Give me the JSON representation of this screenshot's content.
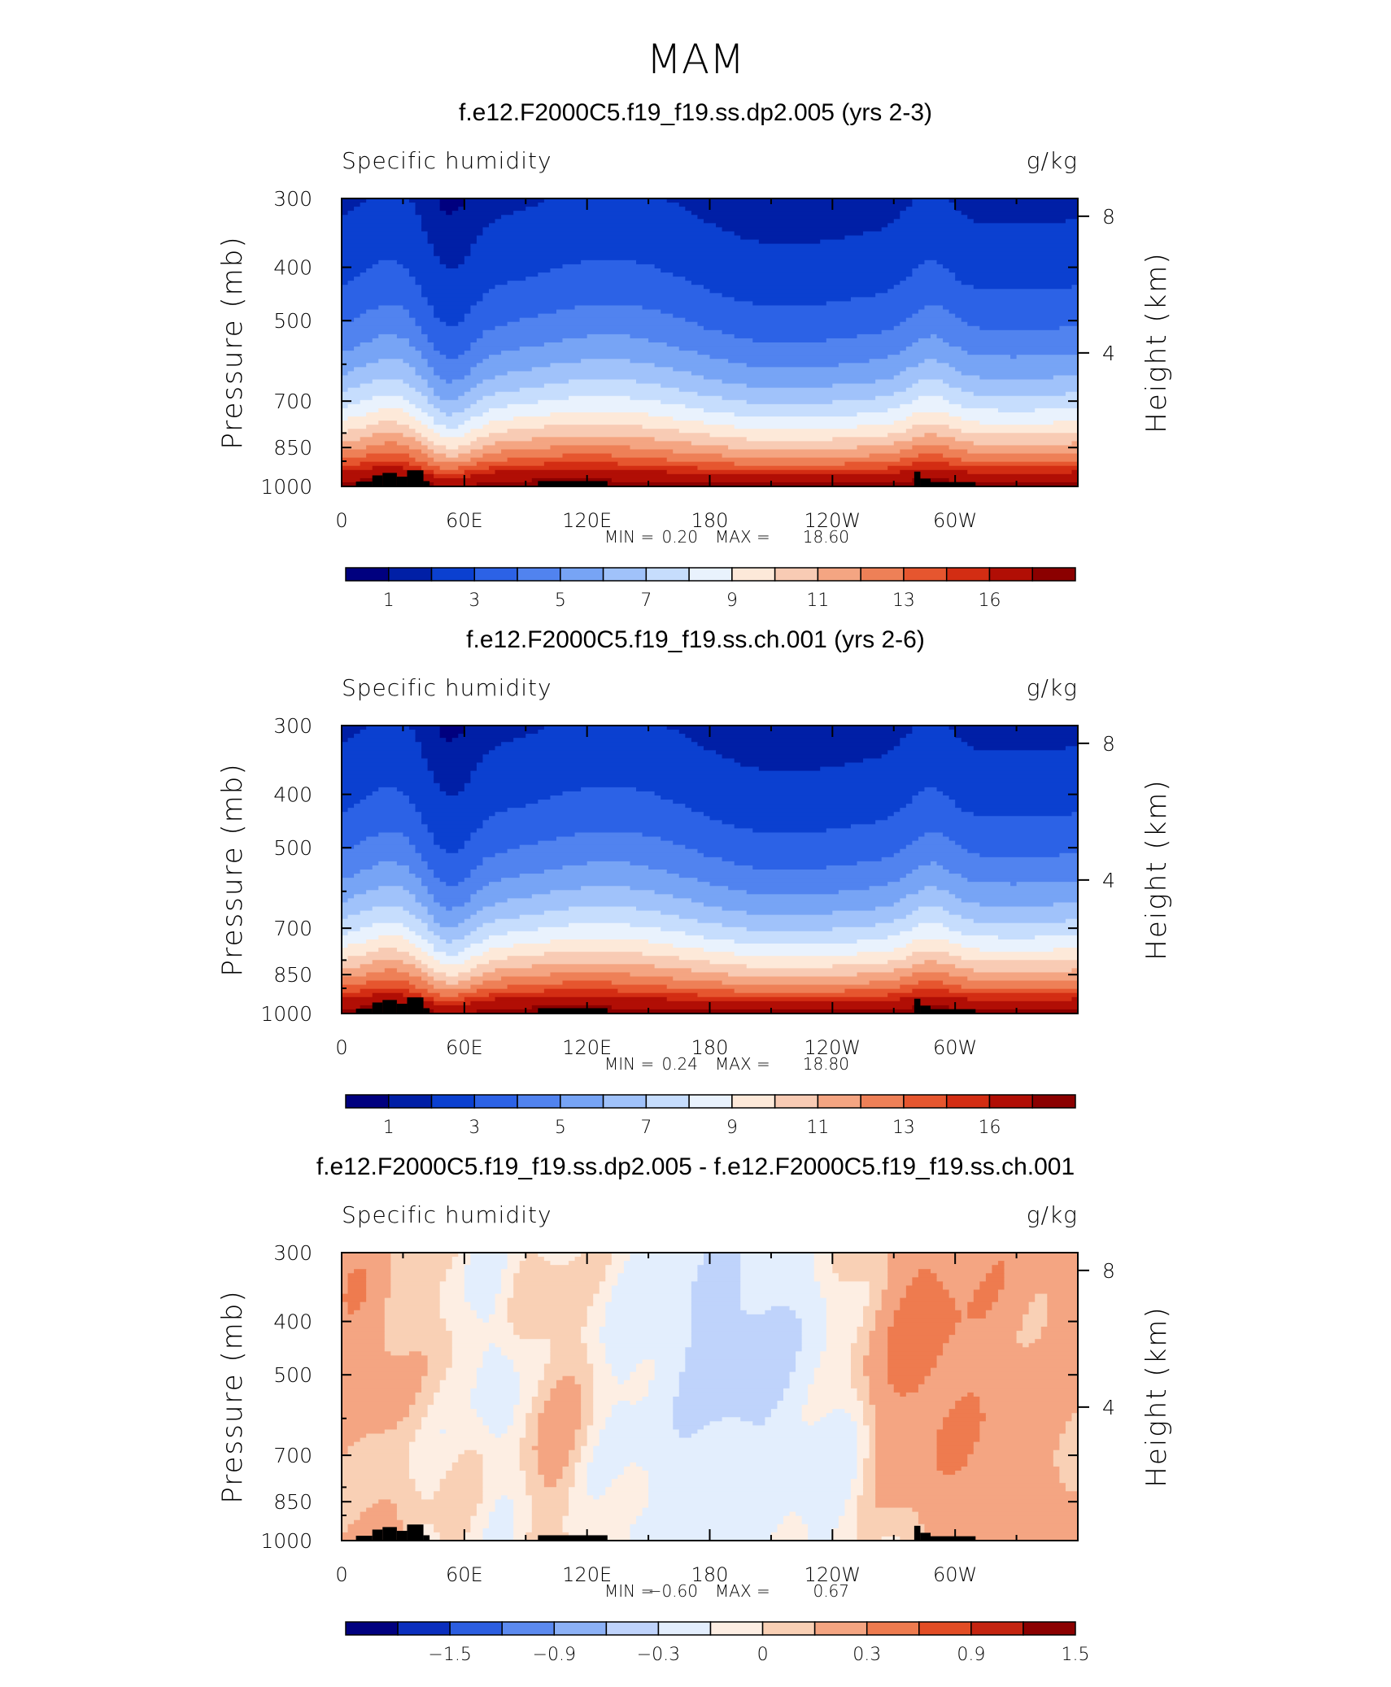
{
  "figure": {
    "suptitle": "MAM",
    "colors": {
      "abs_palette": [
        "#00007f",
        "#001fa6",
        "#0b40d0",
        "#2c62e6",
        "#5183ef",
        "#77a4f5",
        "#a0c2fa",
        "#c6ddfd",
        "#e9f2fd",
        "#fde9d9",
        "#f8cbb4",
        "#f4a582",
        "#ee8057",
        "#e6562f",
        "#d32d13",
        "#b10e05",
        "#8b0000"
      ],
      "diff_palette": [
        "#00007f",
        "#0b2fbe",
        "#2c5ee0",
        "#5c8aef",
        "#8cb1f6",
        "#bfd3fb",
        "#e3eefd",
        "#fdeee3",
        "#f9d0b5",
        "#f4a582",
        "#ee7b4f",
        "#e24d25",
        "#c42410",
        "#8b0000"
      ],
      "land": "#000000"
    }
  },
  "chart_data": [
    {
      "type": "heatmap",
      "title": "f.e12.F2000C5.f19_f19.ss.dp2.005 (yrs 2-3)",
      "left_string": "Specific humidity",
      "right_string": "g/kg",
      "ylabel": "Pressure (mb)",
      "ylabel_right": "Height (km)",
      "xticks": [
        "0",
        "60E",
        "120E",
        "180",
        "120W",
        "60W"
      ],
      "yticks": [
        "300",
        "400",
        "500",
        "700",
        "850",
        "1000"
      ],
      "yticks_right": [
        "8",
        "4"
      ],
      "stats_min_label": "MIN =",
      "min": "0.20",
      "stats_max_label": "MAX =",
      "max": "18.60",
      "colorbar_labels": [
        "1",
        "3",
        "5",
        "7",
        "9",
        "11",
        "13",
        "16"
      ],
      "colorbar_levels": [
        0.5,
        1,
        2,
        3,
        4,
        5,
        6,
        7,
        8,
        9,
        10,
        11,
        12,
        13,
        14,
        16
      ],
      "xlim": [
        0,
        360
      ],
      "ylim": [
        1000,
        300
      ],
      "ylog": true
    },
    {
      "type": "heatmap",
      "title": "f.e12.F2000C5.f19_f19.ss.ch.001 (yrs 2-6)",
      "left_string": "Specific humidity",
      "right_string": "g/kg",
      "ylabel": "Pressure (mb)",
      "ylabel_right": "Height (km)",
      "xticks": [
        "0",
        "60E",
        "120E",
        "180",
        "120W",
        "60W"
      ],
      "yticks": [
        "300",
        "400",
        "500",
        "700",
        "850",
        "1000"
      ],
      "yticks_right": [
        "8",
        "4"
      ],
      "stats_min_label": "MIN =",
      "min": "0.24",
      "stats_max_label": "MAX =",
      "max": "18.80",
      "colorbar_labels": [
        "1",
        "3",
        "5",
        "7",
        "9",
        "11",
        "13",
        "16"
      ],
      "colorbar_levels": [
        0.5,
        1,
        2,
        3,
        4,
        5,
        6,
        7,
        8,
        9,
        10,
        11,
        12,
        13,
        14,
        16
      ],
      "xlim": [
        0,
        360
      ],
      "ylim": [
        1000,
        300
      ],
      "ylog": true
    },
    {
      "type": "heatmap",
      "title": "f.e12.F2000C5.f19_f19.ss.dp2.005 - f.e12.F2000C5.f19_f19.ss.ch.001",
      "left_string": "Specific humidity",
      "right_string": "g/kg",
      "ylabel": "Pressure (mb)",
      "ylabel_right": "Height (km)",
      "xticks": [
        "0",
        "60E",
        "120E",
        "180",
        "120W",
        "60W"
      ],
      "yticks": [
        "300",
        "400",
        "500",
        "700",
        "850",
        "1000"
      ],
      "yticks_right": [
        "8",
        "4"
      ],
      "stats_min_label": "MIN =",
      "min": "−0.60",
      "stats_max_label": "MAX =",
      "max": "0.67",
      "colorbar_labels": [
        "−1.5",
        "−0.9",
        "−0.3",
        "0",
        "0.3",
        "0.9",
        "1.5"
      ],
      "colorbar_levels": [
        -1.8,
        -1.5,
        -1.2,
        -0.9,
        -0.6,
        -0.3,
        -0.1,
        0,
        0.1,
        0.3,
        0.6,
        0.9,
        1.2,
        1.5,
        1.8
      ],
      "xlim": [
        0,
        360
      ],
      "ylim": [
        1000,
        300
      ],
      "ylog": true
    }
  ]
}
